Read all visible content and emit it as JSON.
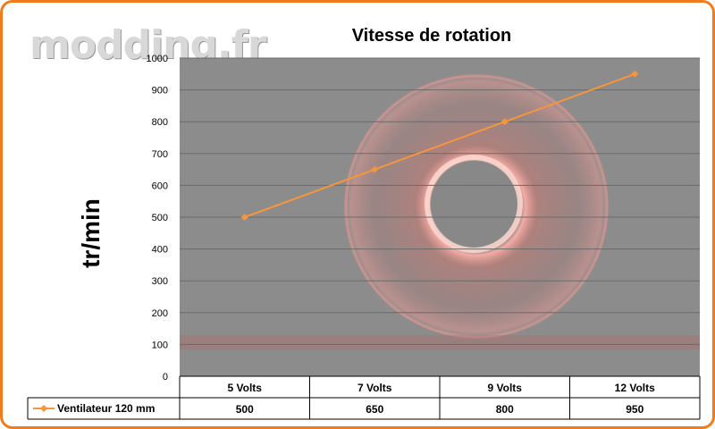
{
  "watermark": "modding.fr",
  "chart_data": {
    "type": "line",
    "title": "Vitesse de rotation",
    "ylabel": "tr/min",
    "xlabel": "",
    "categories": [
      "5 Volts",
      "7 Volts",
      "9 Volts",
      "12 Volts"
    ],
    "series": [
      {
        "name": "Ventilateur 120 mm",
        "values": [
          500,
          650,
          800,
          950
        ],
        "color": "#f7953a"
      }
    ],
    "ylim": [
      0,
      1000
    ],
    "yticks": [
      0,
      100,
      200,
      300,
      400,
      500,
      600,
      700,
      800,
      900,
      1000
    ],
    "grid": true,
    "legend": "data-table",
    "plot_background": "#8c8c8c",
    "accent_color": "#f07c1e"
  }
}
